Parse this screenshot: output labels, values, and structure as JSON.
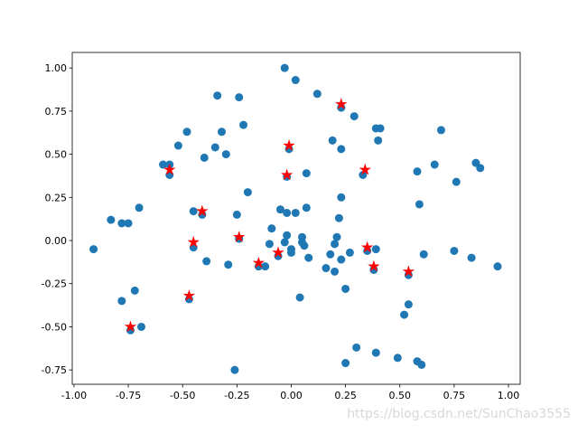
{
  "chart_data": {
    "type": "scatter",
    "xlim": [
      -1.008,
      1.054
    ],
    "ylim": [
      -0.833,
      1.09
    ],
    "xticks": [
      {
        "value": -1,
        "label": "-1.00"
      },
      {
        "value": -0.75,
        "label": "-0.75"
      },
      {
        "value": -0.5,
        "label": "-0.50"
      },
      {
        "value": -0.25,
        "label": "-0.25"
      },
      {
        "value": 0,
        "label": "0.00"
      },
      {
        "value": 0.25,
        "label": "0.25"
      },
      {
        "value": 0.5,
        "label": "0.50"
      },
      {
        "value": 0.75,
        "label": "0.75"
      },
      {
        "value": 1,
        "label": "1.00"
      }
    ],
    "yticks": [
      {
        "value": -0.75,
        "label": "-0.75"
      },
      {
        "value": -0.5,
        "label": "-0.50"
      },
      {
        "value": -0.25,
        "label": "-0.25"
      },
      {
        "value": 0,
        "label": "0.00"
      },
      {
        "value": 0.25,
        "label": "0.25"
      },
      {
        "value": 0.5,
        "label": "0.50"
      },
      {
        "value": 0.75,
        "label": "0.75"
      },
      {
        "value": 1,
        "label": "1.00"
      }
    ],
    "grid": false,
    "series": [
      {
        "color": "#1f77b4",
        "marker": "o",
        "x": [
          -0.03,
          0.02,
          -0.34,
          -0.24,
          0.12,
          -0.22,
          0.23,
          0.29,
          -0.48,
          -0.32,
          -0.52,
          -0.35,
          -0.3,
          -0.4,
          -0.59,
          -0.56,
          -0.56,
          0.19,
          0.23,
          0.39,
          0.41,
          0.4,
          0.69,
          -0.01,
          0.07,
          0.33,
          0.58,
          0.76,
          0.85,
          0.87,
          0.66,
          -0.02,
          -0.2,
          0.23,
          0.07,
          0.59,
          -0.7,
          -0.83,
          -0.78,
          -0.75,
          -0.45,
          -0.41,
          -0.25,
          -0.05,
          -0.02,
          0.02,
          0.22,
          -0.09,
          -0.02,
          0.05,
          0.21,
          -0.03,
          -0.1,
          -0.24,
          0.2,
          0.0,
          0.0,
          0.05,
          0.06,
          -0.91,
          -0.45,
          0.35,
          0.39,
          0.61,
          0.75,
          0.95,
          -0.39,
          -0.29,
          -0.15,
          -0.12,
          -0.06,
          0.08,
          0.18,
          0.27,
          0.23,
          0.16,
          0.2,
          0.38,
          0.54,
          0.83,
          -0.78,
          -0.72,
          0.04,
          0.25,
          0.54,
          0.52,
          -0.47,
          -0.74,
          -0.69,
          0.3,
          0.39,
          0.49,
          0.58,
          0.6,
          0.25,
          -0.26
        ],
        "values": [
          1.0,
          0.93,
          0.84,
          0.83,
          0.85,
          0.67,
          0.77,
          0.72,
          0.63,
          0.63,
          0.55,
          0.54,
          0.5,
          0.48,
          0.44,
          0.44,
          0.38,
          0.58,
          0.53,
          0.65,
          0.65,
          0.58,
          0.64,
          0.53,
          0.39,
          0.38,
          0.4,
          0.34,
          0.45,
          0.42,
          0.44,
          0.37,
          0.28,
          0.25,
          0.19,
          0.21,
          0.19,
          0.12,
          0.1,
          0.1,
          0.17,
          0.15,
          0.15,
          0.18,
          0.16,
          0.16,
          0.13,
          0.07,
          0.03,
          0.02,
          0.02,
          -0.01,
          -0.02,
          0.01,
          -0.02,
          -0.05,
          -0.07,
          -0.01,
          -0.03,
          -0.05,
          -0.04,
          -0.06,
          -0.05,
          -0.08,
          -0.06,
          -0.15,
          -0.12,
          -0.14,
          -0.15,
          -0.15,
          -0.09,
          -0.1,
          -0.08,
          -0.07,
          -0.11,
          -0.16,
          -0.18,
          -0.17,
          -0.2,
          -0.1,
          -0.35,
          -0.29,
          -0.33,
          -0.28,
          -0.37,
          -0.43,
          -0.34,
          -0.52,
          -0.5,
          -0.62,
          -0.65,
          -0.68,
          -0.7,
          -0.72,
          -0.71,
          -0.75
        ]
      },
      {
        "color": "red",
        "marker": "*",
        "x": [
          0.23,
          -0.01,
          -0.56,
          -0.02,
          0.34,
          -0.41,
          -0.45,
          -0.24,
          -0.06,
          -0.15,
          0.35,
          0.38,
          0.54,
          -0.47,
          -0.74
        ],
        "values": [
          0.79,
          0.55,
          0.41,
          0.38,
          0.41,
          0.17,
          -0.01,
          0.02,
          -0.07,
          -0.13,
          -0.04,
          -0.15,
          -0.18,
          -0.32,
          -0.5
        ]
      }
    ]
  },
  "watermark": "https://blog.csdn.net/SunChao3555"
}
